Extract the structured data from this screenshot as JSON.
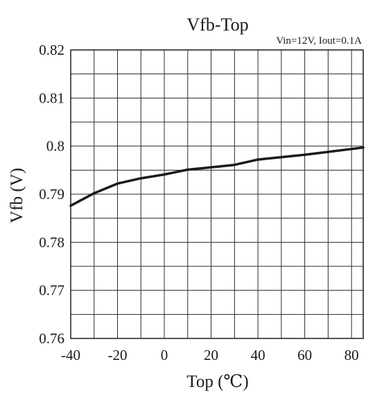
{
  "chart_data": {
    "type": "line",
    "title": "Vfb-Top",
    "subtitle": "Vin=12V, Iout=0.1A",
    "xlabel": "Top (℃)",
    "ylabel": "Vfb (V)",
    "xlim": [
      -40,
      85
    ],
    "ylim": [
      0.76,
      0.82
    ],
    "x_ticks": [
      -40,
      -20,
      0,
      20,
      40,
      60,
      80
    ],
    "x_tick_labels": [
      "-40",
      "-20",
      "0",
      "20",
      "40",
      "60",
      "80"
    ],
    "y_ticks": [
      0.76,
      0.77,
      0.78,
      0.79,
      0.8,
      0.81,
      0.82
    ],
    "y_tick_labels": [
      "0.76",
      "0.77",
      "0.78",
      "0.79",
      "0.8",
      "0.81",
      "0.82"
    ],
    "x_minor_step": 10,
    "y_minor_step": 0.005,
    "grid": true,
    "legend": "none",
    "series": [
      {
        "x": [
          -40,
          -30,
          -20,
          -10,
          0,
          10,
          20,
          30,
          40,
          50,
          60,
          70,
          80,
          85
        ],
        "y": [
          0.7876,
          0.7902,
          0.7922,
          0.7933,
          0.7941,
          0.7951,
          0.7956,
          0.7961,
          0.7972,
          0.7977,
          0.7982,
          0.7988,
          0.7994,
          0.7997
        ],
        "color": "#1a1a1a"
      }
    ]
  }
}
